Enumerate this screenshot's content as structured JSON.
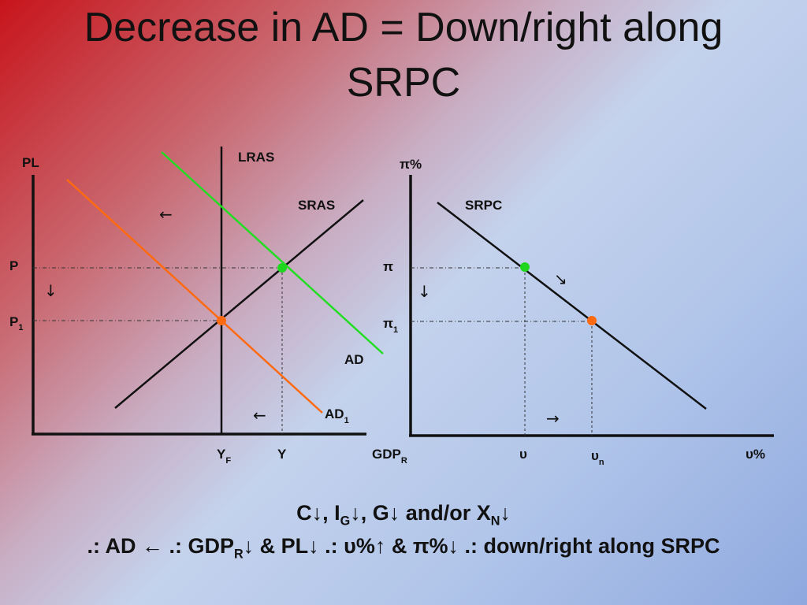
{
  "title": {
    "line1": "Decrease in AD = Down/right along",
    "line2": "SRPC"
  },
  "colors": {
    "black": "#111111",
    "ad_green": "#22dd22",
    "ad1_orange": "#ff6a10",
    "point_green": "#1fd61f",
    "point_orange": "#ff6a10"
  },
  "ad_as": {
    "y_axis_label": "PL",
    "x_axis_label_main": "GDP",
    "x_axis_label_sub": "R",
    "lras_label": "LRAS",
    "sras_label": "SRAS",
    "ad_label": "AD",
    "ad1_label_main": "AD",
    "ad1_label_sub": "1",
    "p_label": "P",
    "p1_label_main": "P",
    "p1_label_sub": "1",
    "yf_label_main": "Y",
    "yf_label_sub": "F",
    "y_label": "Y",
    "arrow_left_top": "←",
    "arrow_down": "↓",
    "arrow_left_bottom": "←"
  },
  "phillips": {
    "y_axis_label": "π%",
    "x_axis_label": "υ%",
    "srpc_label": "SRPC",
    "pi_label": "π",
    "pi1_label_main": "π",
    "pi1_label_sub": "1",
    "u_label": "υ",
    "un_label_main": "υ",
    "un_label_sub": "n",
    "arrow_diag": "↘",
    "arrow_down": "↓",
    "arrow_right": "→"
  },
  "bottom": {
    "line1_parts": [
      "C",
      "↓, I",
      "G",
      "↓, G",
      "↓ and/or X",
      "N",
      "↓"
    ],
    "line2_parts": [
      ".: AD ← .: GDP",
      "R",
      "↓ & PL↓ .: υ%↑ & π%↓ .: down/right along SRPC"
    ]
  }
}
